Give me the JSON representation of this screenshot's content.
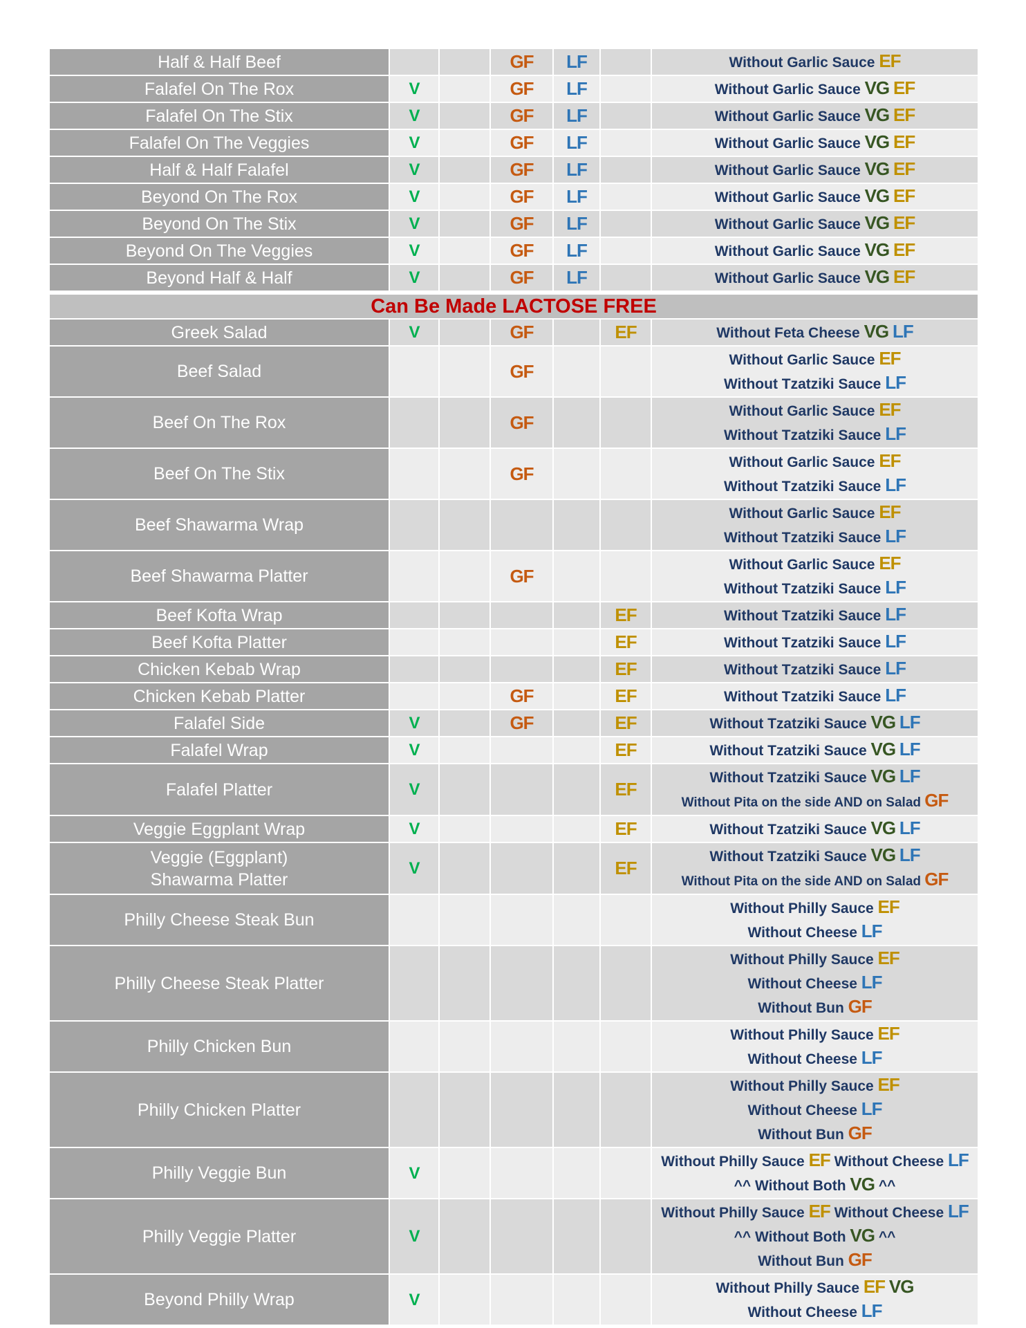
{
  "colors": {
    "V": "#00b050",
    "GF": "#c55a11",
    "LF": "#2e75b6",
    "EF": "#bf9000",
    "VG": "#375623",
    "notes": "#1f3864",
    "section": "#c00000"
  },
  "groups": [
    {
      "header": "",
      "rows": [
        {
          "name": "Half & Half Beef",
          "v": "",
          "gf": "GF",
          "lf": "LF",
          "ef": "",
          "notes": [
            [
              "Without Garlic Sauce",
              "EF"
            ]
          ]
        },
        {
          "name": "Falafel On The Rox",
          "v": "V",
          "gf": "GF",
          "lf": "LF",
          "ef": "",
          "notes": [
            [
              "Without Garlic Sauce",
              "VG",
              "EF"
            ]
          ]
        },
        {
          "name": "Falafel On The Stix",
          "v": "V",
          "gf": "GF",
          "lf": "LF",
          "ef": "",
          "notes": [
            [
              "Without Garlic Sauce",
              "VG",
              "EF"
            ]
          ]
        },
        {
          "name": "Falafel On The Veggies",
          "v": "V",
          "gf": "GF",
          "lf": "LF",
          "ef": "",
          "notes": [
            [
              "Without Garlic Sauce",
              "VG",
              "EF"
            ]
          ]
        },
        {
          "name": "Half & Half Falafel",
          "v": "V",
          "gf": "GF",
          "lf": "LF",
          "ef": "",
          "notes": [
            [
              "Without Garlic Sauce",
              "VG",
              "EF"
            ]
          ]
        },
        {
          "name": "Beyond On The Rox",
          "v": "V",
          "gf": "GF",
          "lf": "LF",
          "ef": "",
          "notes": [
            [
              "Without Garlic Sauce",
              "VG",
              "EF"
            ]
          ]
        },
        {
          "name": "Beyond On The Stix",
          "v": "V",
          "gf": "GF",
          "lf": "LF",
          "ef": "",
          "notes": [
            [
              "Without Garlic Sauce",
              "VG",
              "EF"
            ]
          ]
        },
        {
          "name": "Beyond On The Veggies",
          "v": "V",
          "gf": "GF",
          "lf": "LF",
          "ef": "",
          "notes": [
            [
              "Without Garlic Sauce",
              "VG",
              "EF"
            ]
          ]
        },
        {
          "name": "Beyond Half & Half",
          "v": "V",
          "gf": "GF",
          "lf": "LF",
          "ef": "",
          "notes": [
            [
              "Without Garlic Sauce",
              "VG",
              "EF"
            ]
          ]
        }
      ]
    },
    {
      "header": "Can Be Made LACTOSE FREE",
      "rows": [
        {
          "name": "Greek Salad",
          "v": "V",
          "gf": "GF",
          "lf": "",
          "ef": "EF",
          "notes": [
            [
              "Without Feta Cheese",
              "VG",
              "LF"
            ]
          ]
        },
        {
          "name": "Beef Salad",
          "v": "",
          "gf": "GF",
          "lf": "",
          "ef": "",
          "notes": [
            [
              "Without Garlic Sauce",
              "EF"
            ],
            [
              "Without Tzatziki Sauce",
              "LF"
            ]
          ]
        },
        {
          "name": "Beef On The Rox",
          "v": "",
          "gf": "GF",
          "lf": "",
          "ef": "",
          "notes": [
            [
              "Without Garlic Sauce",
              "EF"
            ],
            [
              "Without Tzatziki Sauce",
              "LF"
            ]
          ]
        },
        {
          "name": "Beef On The Stix",
          "v": "",
          "gf": "GF",
          "lf": "",
          "ef": "",
          "notes": [
            [
              "Without Garlic Sauce",
              "EF"
            ],
            [
              "Without Tzatziki Sauce",
              "LF"
            ]
          ]
        },
        {
          "name": "Beef Shawarma Wrap",
          "v": "",
          "gf": "",
          "lf": "",
          "ef": "",
          "notes": [
            [
              "Without Garlic Sauce",
              "EF"
            ],
            [
              "Without Tzatziki Sauce",
              "LF"
            ]
          ]
        },
        {
          "name": "Beef Shawarma Platter",
          "v": "",
          "gf": "GF",
          "lf": "",
          "ef": "",
          "notes": [
            [
              "Without Garlic Sauce",
              "EF"
            ],
            [
              "Without Tzatziki Sauce",
              "LF"
            ]
          ]
        },
        {
          "name": "Beef Kofta Wrap",
          "v": "",
          "gf": "",
          "lf": "",
          "ef": "EF",
          "notes": [
            [
              "Without Tzatziki Sauce",
              "LF"
            ]
          ]
        },
        {
          "name": "Beef Kofta Platter",
          "v": "",
          "gf": "",
          "lf": "",
          "ef": "EF",
          "notes": [
            [
              "Without Tzatziki Sauce",
              "LF"
            ]
          ]
        },
        {
          "name": "Chicken Kebab Wrap",
          "v": "",
          "gf": "",
          "lf": "",
          "ef": "EF",
          "notes": [
            [
              "Without Tzatziki Sauce",
              "LF"
            ]
          ]
        },
        {
          "name": "Chicken Kebab Platter",
          "v": "",
          "gf": "GF",
          "lf": "",
          "ef": "EF",
          "notes": [
            [
              "Without Tzatziki Sauce",
              "LF"
            ]
          ]
        },
        {
          "name": "Falafel Side",
          "v": "V",
          "gf": "GF",
          "lf": "",
          "ef": "EF",
          "notes": [
            [
              "Without Tzatziki Sauce",
              "VG",
              "LF"
            ]
          ]
        },
        {
          "name": "Falafel Wrap",
          "v": "V",
          "gf": "",
          "lf": "",
          "ef": "EF",
          "notes": [
            [
              "Without Tzatziki Sauce",
              "VG",
              "LF"
            ]
          ]
        },
        {
          "name": "Falafel Platter",
          "v": "V",
          "gf": "",
          "lf": "",
          "ef": "EF",
          "notes": [
            [
              "Without Tzatziki Sauce",
              "VG",
              "LF"
            ],
            [
              "Without Pita on the side AND on Salad",
              "GF"
            ]
          ]
        },
        {
          "name": "Veggie Eggplant Wrap",
          "v": "V",
          "gf": "",
          "lf": "",
          "ef": "EF",
          "notes": [
            [
              "Without Tzatziki Sauce",
              "VG",
              "LF"
            ]
          ]
        },
        {
          "name": "Veggie (Eggplant)\nShawarma Platter",
          "v": "V",
          "gf": "",
          "lf": "",
          "ef": "EF",
          "notes": [
            [
              "Without Tzatziki Sauce",
              "VG",
              "LF"
            ],
            [
              "Without Pita on the side AND on Salad",
              "GF"
            ]
          ]
        },
        {
          "name": "Philly Cheese Steak Bun",
          "v": "",
          "gf": "",
          "lf": "",
          "ef": "",
          "notes": [
            [
              "Without Philly Sauce",
              "EF"
            ],
            [
              "Without Cheese",
              "LF"
            ]
          ]
        },
        {
          "name": "Philly Cheese Steak Platter",
          "v": "",
          "gf": "",
          "lf": "",
          "ef": "",
          "notes": [
            [
              "Without Philly Sauce",
              "EF"
            ],
            [
              "Without Cheese",
              "LF"
            ],
            [
              "Without Bun",
              "GF"
            ]
          ]
        },
        {
          "name": "Philly Chicken Bun",
          "v": "",
          "gf": "",
          "lf": "",
          "ef": "",
          "notes": [
            [
              "Without Philly Sauce",
              "EF"
            ],
            [
              "Without Cheese",
              "LF"
            ]
          ]
        },
        {
          "name": "Philly Chicken Platter",
          "v": "",
          "gf": "",
          "lf": "",
          "ef": "",
          "notes": [
            [
              "Without Philly Sauce",
              "EF"
            ],
            [
              "Without Cheese",
              "LF"
            ],
            [
              "Without Bun",
              "GF"
            ]
          ]
        },
        {
          "name": "Philly Veggie Bun",
          "v": "V",
          "gf": "",
          "lf": "",
          "ef": "",
          "notes": [
            [
              "Without Philly Sauce",
              "EF",
              "Without Cheese",
              "LF"
            ],
            [
              "^^ Without Both",
              "VG",
              "^^"
            ]
          ]
        },
        {
          "name": "Philly Veggie Platter",
          "v": "V",
          "gf": "",
          "lf": "",
          "ef": "",
          "notes": [
            [
              "Without Philly Sauce",
              "EF",
              "Without Cheese",
              "LF"
            ],
            [
              "^^ Without Both",
              "VG",
              "^^"
            ],
            [
              "Without Bun",
              "GF"
            ]
          ]
        },
        {
          "name": "Beyond Philly Wrap",
          "v": "V",
          "gf": "",
          "lf": "",
          "ef": "",
          "notes": [
            [
              "Without Philly Sauce",
              "EF",
              "VG"
            ],
            [
              "Without Cheese",
              "LF"
            ]
          ]
        }
      ]
    }
  ]
}
